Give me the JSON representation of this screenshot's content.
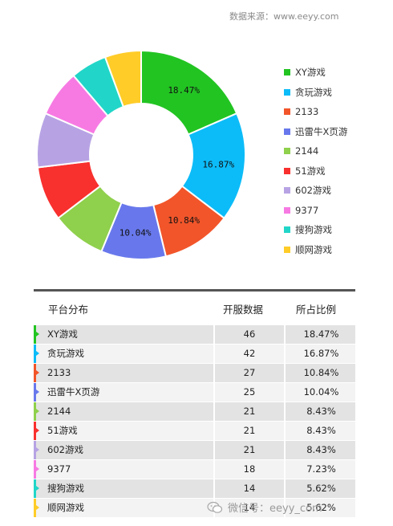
{
  "source": "数据来源：www.eeyy.com",
  "chart_data": {
    "type": "pie",
    "donut": true,
    "categories": [
      "XY游戏",
      "贪玩游戏",
      "2133",
      "迅雷牛X页游",
      "2144",
      "51游戏",
      "602游戏",
      "9377",
      "搜狗游戏",
      "顺网游戏"
    ],
    "values": [
      18.47,
      16.87,
      10.84,
      10.04,
      8.43,
      8.43,
      8.43,
      7.23,
      5.62,
      5.62
    ],
    "slice_labels": [
      "18.47%",
      "16.87%",
      "10.84%",
      "10.04%",
      "",
      "",
      "",
      "",
      "",
      ""
    ],
    "colors": [
      "#22c422",
      "#0cbcf8",
      "#f2552a",
      "#6878ec",
      "#8fd04c",
      "#f8302e",
      "#b7a3e4",
      "#f77ae3",
      "#21d6c8",
      "#ffcc28"
    ],
    "legend_position": "right"
  },
  "table": {
    "headers": [
      "平台分布",
      "开服数据",
      "所占比例"
    ],
    "rows": [
      {
        "name": "XY游戏",
        "count": "46",
        "pct": "18.47%"
      },
      {
        "name": "贪玩游戏",
        "count": "42",
        "pct": "16.87%"
      },
      {
        "name": "2133",
        "count": "27",
        "pct": "10.84%"
      },
      {
        "name": "迅雷牛X页游",
        "count": "25",
        "pct": "10.04%"
      },
      {
        "name": "2144",
        "count": "21",
        "pct": "8.43%"
      },
      {
        "name": "51游戏",
        "count": "21",
        "pct": "8.43%"
      },
      {
        "name": "602游戏",
        "count": "21",
        "pct": "8.43%"
      },
      {
        "name": "9377",
        "count": "18",
        "pct": "7.23%"
      },
      {
        "name": "搜狗游戏",
        "count": "14",
        "pct": "5.62%"
      },
      {
        "name": "顺网游戏",
        "count": "14",
        "pct": "5.62%"
      }
    ]
  },
  "watermark": "微信号：eeyy_com"
}
